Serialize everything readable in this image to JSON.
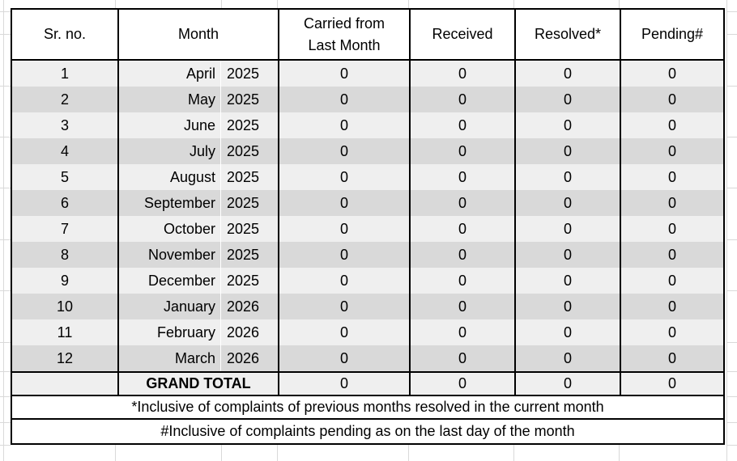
{
  "table": {
    "headers": {
      "sr": "Sr. no.",
      "month": "Month",
      "carried_line1": "Carried from",
      "carried_line2": "Last Month",
      "received": "Received",
      "resolved": "Resolved*",
      "pending": "Pending#"
    },
    "rows": [
      {
        "sr": "1",
        "month": "April",
        "year": "2025",
        "carried": "0",
        "received": "0",
        "resolved": "0",
        "pending": "0"
      },
      {
        "sr": "2",
        "month": "May",
        "year": "2025",
        "carried": "0",
        "received": "0",
        "resolved": "0",
        "pending": "0"
      },
      {
        "sr": "3",
        "month": "June",
        "year": "2025",
        "carried": "0",
        "received": "0",
        "resolved": "0",
        "pending": "0"
      },
      {
        "sr": "4",
        "month": "July",
        "year": "2025",
        "carried": "0",
        "received": "0",
        "resolved": "0",
        "pending": "0"
      },
      {
        "sr": "5",
        "month": "August",
        "year": "2025",
        "carried": "0",
        "received": "0",
        "resolved": "0",
        "pending": "0"
      },
      {
        "sr": "6",
        "month": "September",
        "year": "2025",
        "carried": "0",
        "received": "0",
        "resolved": "0",
        "pending": "0"
      },
      {
        "sr": "7",
        "month": "October",
        "year": "2025",
        "carried": "0",
        "received": "0",
        "resolved": "0",
        "pending": "0"
      },
      {
        "sr": "8",
        "month": "November",
        "year": "2025",
        "carried": "0",
        "received": "0",
        "resolved": "0",
        "pending": "0"
      },
      {
        "sr": "9",
        "month": "December",
        "year": "2025",
        "carried": "0",
        "received": "0",
        "resolved": "0",
        "pending": "0"
      },
      {
        "sr": "10",
        "month": "January",
        "year": "2026",
        "carried": "0",
        "received": "0",
        "resolved": "0",
        "pending": "0"
      },
      {
        "sr": "11",
        "month": "February",
        "year": "2026",
        "carried": "0",
        "received": "0",
        "resolved": "0",
        "pending": "0"
      },
      {
        "sr": "12",
        "month": "March",
        "year": "2026",
        "carried": "0",
        "received": "0",
        "resolved": "0",
        "pending": "0"
      }
    ],
    "grand_total": {
      "label": "GRAND TOTAL",
      "carried": "0",
      "received": "0",
      "resolved": "0",
      "pending": "0"
    },
    "footnotes": [
      "*Inclusive of complaints of previous months resolved in the current month",
      "#Inclusive of complaints pending as on the last day of the month"
    ]
  },
  "colors": {
    "band_light": "#efefef",
    "band_dark": "#d9d9d9",
    "border": "#000000",
    "gridline": "#d9d9d9",
    "header_bg": "#ffffff"
  }
}
